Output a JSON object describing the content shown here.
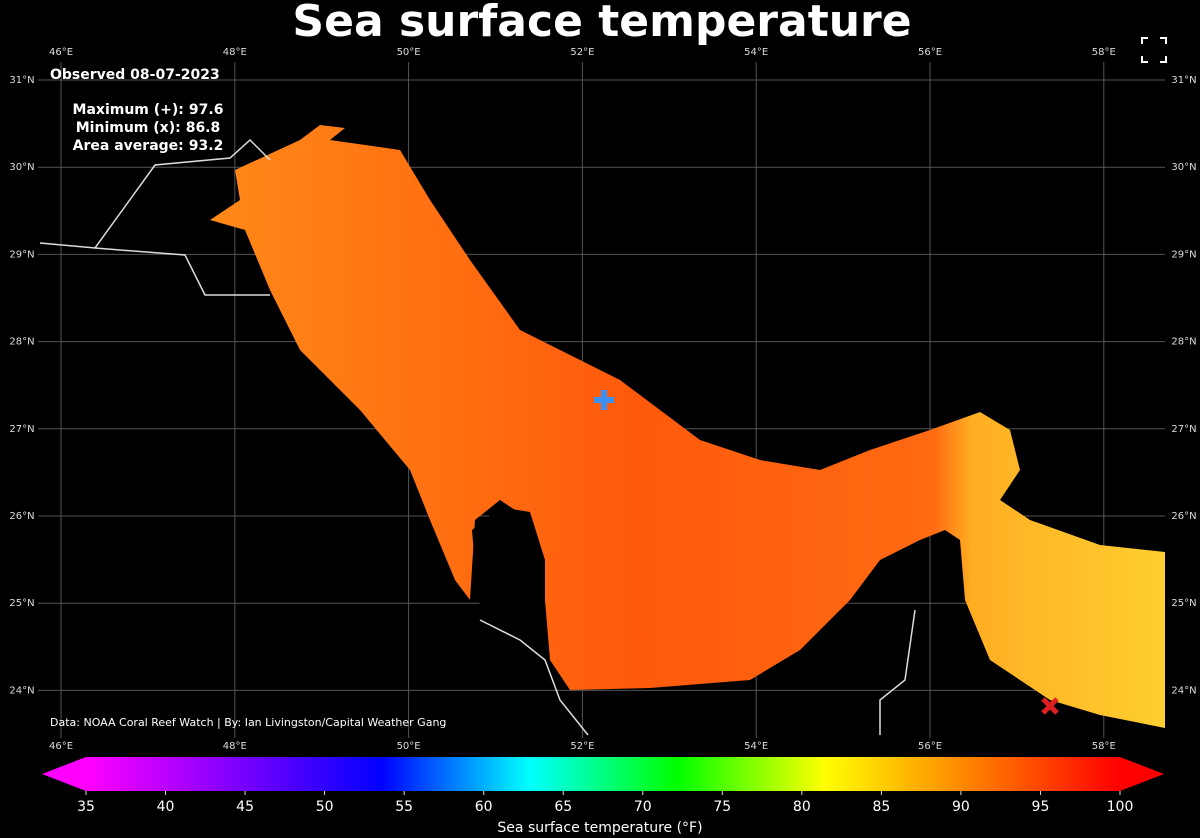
{
  "title": "Sea surface temperature",
  "observed": "Observed 08-07-2023",
  "stats": [
    {
      "label": "Maximum (+):",
      "value": 97.6
    },
    {
      "label": "Minimum (x):",
      "value": 86.8
    },
    {
      "label": "Area average:",
      "value": 93.2
    }
  ],
  "credit": "Data: NOAA Coral Reef Watch | By: Ian Livingston/Capital Weather Gang",
  "longitudes": [
    "46°E",
    "48°E",
    "50°E",
    "52°E",
    "54°E",
    "56°E",
    "58°E"
  ],
  "latitudes": [
    "31°N",
    "30°N",
    "29°N",
    "28°N",
    "27°N",
    "26°N",
    "25°N",
    "24°N"
  ],
  "colorbar": {
    "label": "Sea surface temperature (°F)",
    "lim": [
      35,
      100
    ],
    "ticks": [
      35,
      40,
      45,
      50,
      55,
      60,
      65,
      70,
      75,
      80,
      85,
      90,
      95,
      100
    ],
    "colors": [
      "#ff00ff",
      "#8000ff",
      "#0000ff",
      "#00ffff",
      "#00ff00",
      "#ffff00",
      "#ff8000",
      "#ff0000"
    ]
  }
}
